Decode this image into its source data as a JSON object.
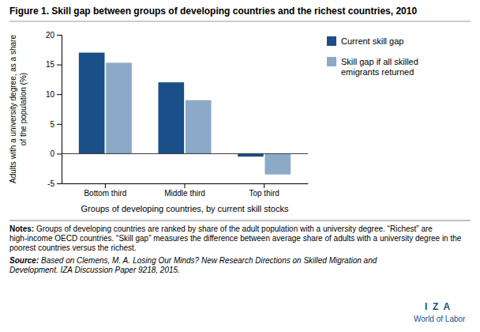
{
  "chart_data": {
    "type": "bar",
    "title": "Figure 1. Skill gap between groups of developing countries and the richest countries, 2010",
    "categories": [
      "Bottom third",
      "Middle third",
      "Top third"
    ],
    "series": [
      {
        "name": "Current skill gap",
        "color": "#1a4f8a",
        "values": [
          17.0,
          12.0,
          -0.5
        ]
      },
      {
        "name": "Skill gap if all skilled\nemigrants returned",
        "color": "#8caac8",
        "values": [
          15.3,
          9.0,
          -3.5
        ]
      }
    ],
    "xlabel": "Groups of developing countries, by current skill stocks",
    "ylabel": "Adults with a university degree, as a share\nof the population (%)",
    "ylim": [
      -5,
      20
    ],
    "yticks": [
      -5,
      0,
      5,
      10,
      15,
      20
    ],
    "grid": false,
    "legend": "right",
    "annotations": {
      "notes": [
        "Notes:",
        " Groups of developing countries are ranked by share of the adult population with a university degree. “Richest” are high-income OECD countries. “Skill gap” measures the difference between average share of adults with a university degree in the poorest countries versus the richest."
      ],
      "source": [
        "Source:",
        " Based on Clemens, M. A. ",
        "Losing Our Minds? New Research Directions on Skilled Migration and Development",
        ". IZA Discussion Paper 9218, 2015."
      ],
      "logo": [
        "I  Z  A",
        "World of Labor"
      ]
    }
  }
}
